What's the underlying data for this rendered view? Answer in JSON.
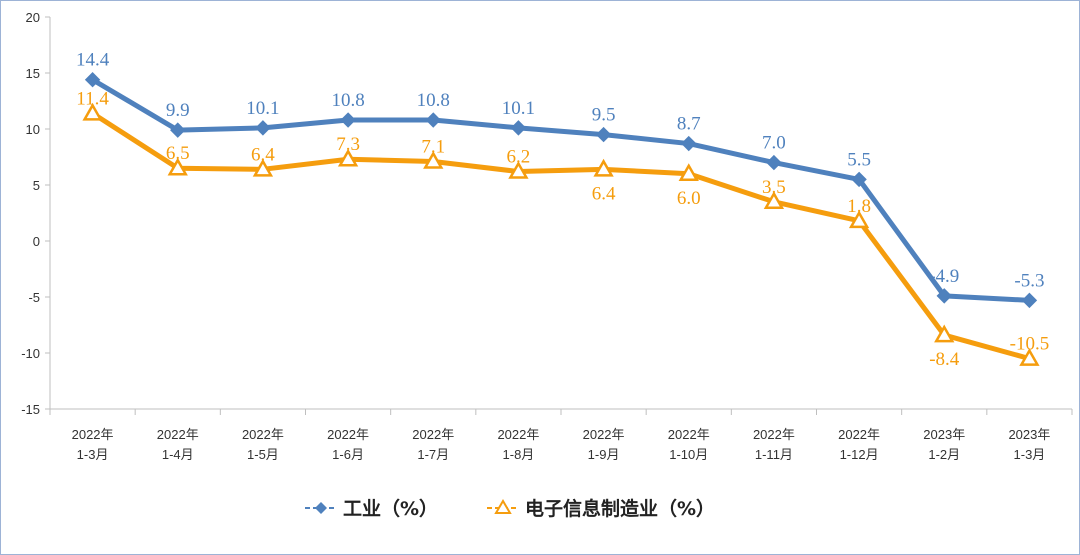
{
  "chart_data": {
    "type": "line",
    "categories": [
      [
        "2022年",
        "1-3月"
      ],
      [
        "2022年",
        "1-4月"
      ],
      [
        "2022年",
        "1-5月"
      ],
      [
        "2022年",
        "1-6月"
      ],
      [
        "2022年",
        "1-7月"
      ],
      [
        "2022年",
        "1-8月"
      ],
      [
        "2022年",
        "1-9月"
      ],
      [
        "2022年",
        "1-10月"
      ],
      [
        "2022年",
        "1-11月"
      ],
      [
        "2022年",
        "1-12月"
      ],
      [
        "2023年",
        "1-2月"
      ],
      [
        "2023年",
        "1-3月"
      ]
    ],
    "series": [
      {
        "name": "工业（%）",
        "color": "#4f81bd",
        "marker": "diamond",
        "values": [
          14.4,
          9.9,
          10.1,
          10.8,
          10.8,
          10.1,
          9.5,
          8.7,
          7.0,
          5.5,
          -4.9,
          -5.3
        ],
        "labels": [
          "14.4",
          "9.9",
          "10.1",
          "10.8",
          "10.8",
          "10.1",
          "9.5",
          "8.7",
          "7.0",
          "5.5",
          "-4.9",
          "-5.3"
        ]
      },
      {
        "name": "电子信息制造业（%）",
        "color": "#f59d0e",
        "marker": "triangle",
        "values": [
          11.4,
          6.5,
          6.4,
          7.3,
          7.1,
          6.2,
          6.4,
          6.0,
          3.5,
          1.8,
          -8.4,
          -10.5
        ],
        "labels": [
          "11.4",
          "6.5",
          "6.4",
          "7.3",
          "7.1",
          "6.2",
          "6.4",
          "6.0",
          "3.5",
          "1.8",
          "-8.4",
          "-10.5"
        ]
      }
    ],
    "ylim": [
      -15,
      20
    ],
    "yticks": [
      "20",
      "15",
      "10",
      "5",
      "0",
      "-5",
      "-10",
      "-15"
    ],
    "grid": false,
    "legend_position": "bottom"
  }
}
